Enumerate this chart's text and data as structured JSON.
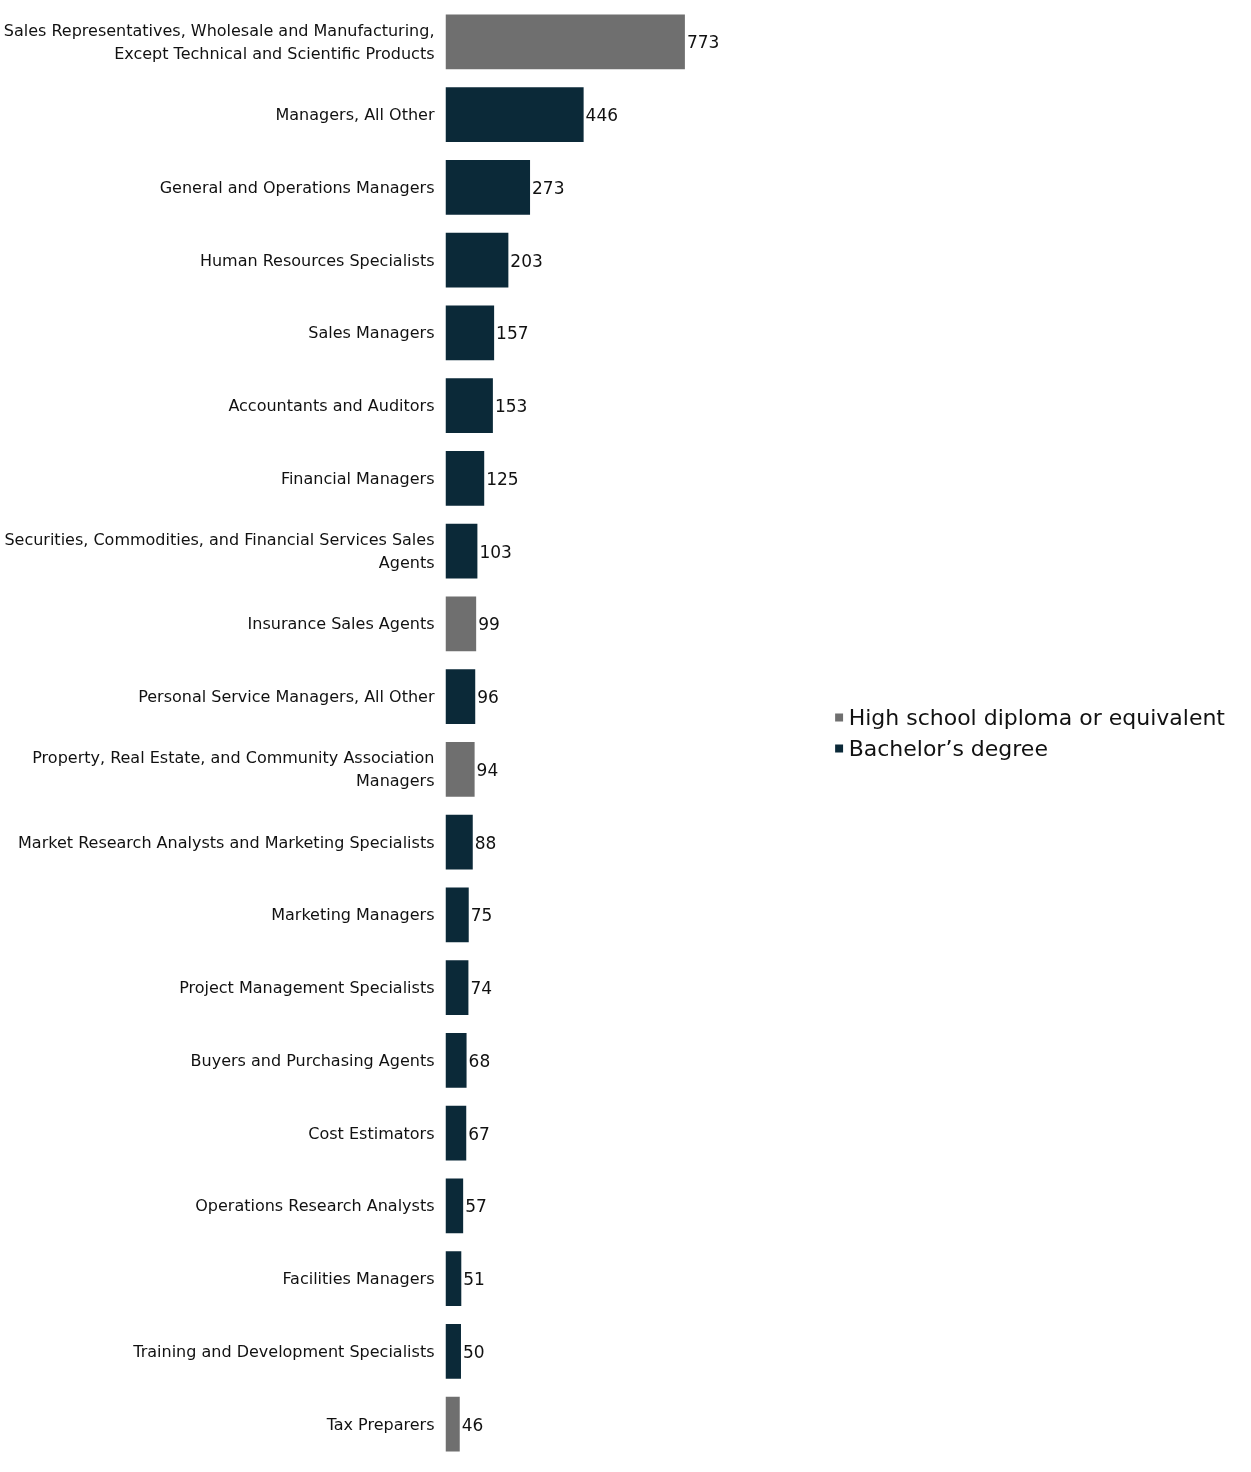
{
  "chart_data": {
    "type": "bar",
    "orientation": "horizontal",
    "data_labels": true,
    "legend": "right",
    "categories": [
      "Sales Representatives, Wholesale and Manufacturing, Except Technical and Scientific Products",
      "Managers, All Other",
      "General and Operations Managers",
      "Human Resources Specialists",
      "Sales Managers",
      "Accountants and Auditors",
      "Financial Managers",
      "Securities, Commodities, and Financial Services Sales Agents",
      "Insurance Sales Agents",
      "Personal Service Managers, All Other",
      "Property, Real Estate, and Community Association Managers",
      "Market Research Analysts and Marketing Specialists",
      "Marketing Managers",
      "Project Management Specialists",
      "Buyers and Purchasing Agents",
      "Cost Estimators",
      "Operations Research Analysts",
      "Facilities Managers",
      "Training and Development Specialists",
      "Tax Preparers"
    ],
    "series": [
      {
        "name": "High school diploma or equivalent",
        "color": "#6f6f6f",
        "values": [
          773,
          null,
          null,
          null,
          null,
          null,
          null,
          null,
          99,
          null,
          94,
          null,
          null,
          null,
          null,
          null,
          null,
          null,
          null,
          46
        ]
      },
      {
        "name": "Bachelor’s degree",
        "color": "#0b2938",
        "values": [
          null,
          446,
          273,
          203,
          157,
          153,
          125,
          103,
          null,
          96,
          null,
          88,
          75,
          74,
          68,
          67,
          57,
          51,
          50,
          null
        ]
      }
    ]
  }
}
